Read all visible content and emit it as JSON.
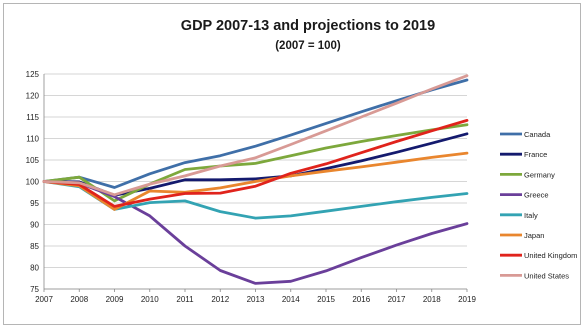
{
  "chart_data": {
    "type": "line",
    "title": "GDP 2007-13 and projections to 2019",
    "subtitle": "(2007 = 100)",
    "xlabel": "",
    "ylabel": "",
    "x": [
      "2007",
      "2008",
      "2009",
      "2010",
      "2011",
      "2012",
      "2013",
      "2014",
      "2015",
      "2016",
      "2017",
      "2018",
      "2019"
    ],
    "ylim": [
      75,
      125
    ],
    "yticks": [
      "75",
      "80",
      "85",
      "90",
      "95",
      "100",
      "105",
      "110",
      "115",
      "120",
      "125"
    ],
    "grid": "horizontal",
    "legend_position": "right",
    "series": [
      {
        "name": "Canada",
        "color": "#3f6fa8",
        "values": [
          100,
          101.0,
          98.6,
          101.8,
          104.4,
          106.0,
          108.2,
          110.8,
          113.5,
          116.2,
          118.8,
          121.3,
          123.6
        ]
      },
      {
        "name": "France",
        "color": "#141a6e",
        "values": [
          100,
          99.9,
          96.8,
          98.4,
          100.4,
          100.4,
          100.6,
          101.3,
          103.0,
          104.8,
          106.8,
          108.9,
          111.1
        ]
      },
      {
        "name": "Germany",
        "color": "#7da83c",
        "values": [
          100,
          101.0,
          95.5,
          99.4,
          102.8,
          103.6,
          104.2,
          106.0,
          107.8,
          109.3,
          110.7,
          112.0,
          113.2
        ]
      },
      {
        "name": "Greece",
        "color": "#6a3f9a",
        "values": [
          100,
          99.6,
          96.5,
          92.0,
          85.0,
          79.3,
          76.3,
          76.8,
          79.2,
          82.3,
          85.2,
          87.9,
          90.2
        ]
      },
      {
        "name": "Italy",
        "color": "#33a3b3",
        "values": [
          100,
          98.8,
          93.5,
          95.1,
          95.5,
          93.0,
          91.5,
          92.0,
          93.1,
          94.2,
          95.3,
          96.3,
          97.2
        ]
      },
      {
        "name": "Japan",
        "color": "#e9862e",
        "values": [
          100,
          99.0,
          93.5,
          97.8,
          97.5,
          98.5,
          100.0,
          101.3,
          102.4,
          103.4,
          104.5,
          105.6,
          106.6
        ]
      },
      {
        "name": "United Kingdom",
        "color": "#e0231c",
        "values": [
          100,
          99.3,
          94.2,
          95.9,
          97.2,
          97.3,
          98.9,
          101.9,
          104.1,
          106.7,
          109.3,
          111.8,
          114.2
        ]
      },
      {
        "name": "United States",
        "color": "#d89a95",
        "values": [
          100,
          99.7,
          96.9,
          99.4,
          101.3,
          103.6,
          105.5,
          108.6,
          111.8,
          115.0,
          118.2,
          121.5,
          124.6
        ]
      }
    ]
  }
}
